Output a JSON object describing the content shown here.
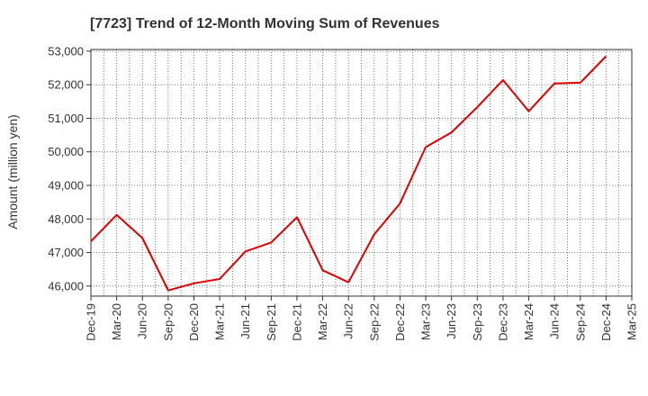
{
  "chart_data": {
    "type": "line",
    "title": "[7723]  Trend of 12-Month Moving Sum of Revenues",
    "xlabel": "",
    "ylabel": "Amount (million yen)",
    "categories": [
      "Dec-19",
      "Mar-20",
      "Jun-20",
      "Sep-20",
      "Dec-20",
      "Mar-21",
      "Jun-21",
      "Sep-21",
      "Dec-21",
      "Mar-22",
      "Jun-22",
      "Sep-22",
      "Dec-22",
      "Mar-23",
      "Jun-23",
      "Sep-23",
      "Dec-23",
      "Mar-24",
      "Jun-24",
      "Sep-24",
      "Dec-24",
      "Mar-25"
    ],
    "y_ticks": [
      "46,000",
      "47,000",
      "48,000",
      "49,000",
      "50,000",
      "51,000",
      "52,000",
      "53,000"
    ],
    "ylim": [
      45700,
      53050
    ],
    "grid": true,
    "series": [
      {
        "color": "#dd0000",
        "values": [
          47330,
          48120,
          47430,
          45870,
          46080,
          46210,
          47030,
          47300,
          48050,
          46470,
          46110,
          47540,
          48460,
          50140,
          50580,
          51330,
          52140,
          51210,
          52040,
          52060,
          52850,
          null
        ]
      }
    ]
  }
}
